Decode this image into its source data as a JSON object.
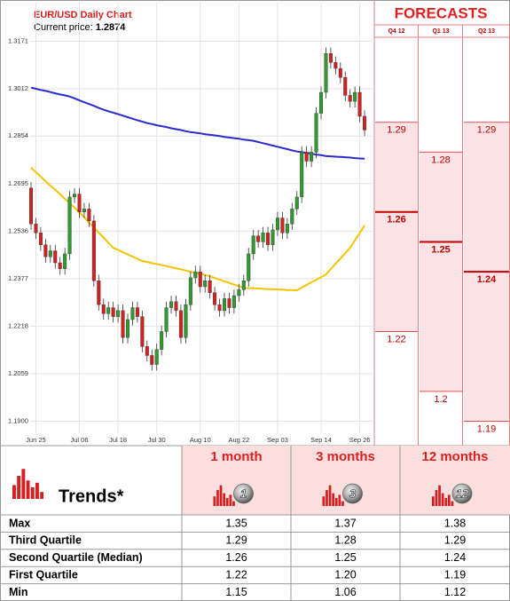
{
  "chart_data": {
    "type": "candlestick",
    "title": "EUR/USD Daily Chart",
    "current_price_label": "Current price:",
    "current_price": 1.2874,
    "categories": [
      null,
      "Jun 25",
      null,
      null,
      null,
      null,
      null,
      null,
      null,
      null,
      "Jul 06",
      null,
      null,
      null,
      null,
      null,
      null,
      null,
      "Jul 18",
      null,
      null,
      null,
      null,
      null,
      null,
      null,
      "Jul 30",
      null,
      null,
      null,
      null,
      null,
      null,
      null,
      null,
      "Aug 10",
      null,
      null,
      null,
      null,
      null,
      null,
      null,
      "Aug 22",
      null,
      null,
      null,
      null,
      null,
      null,
      null,
      "Sep 03",
      null,
      null,
      null,
      null,
      null,
      null,
      null,
      null,
      "Sep 14",
      null,
      null,
      null,
      null,
      null,
      null,
      null,
      "Sep 26",
      null
    ],
    "open": [
      1.268,
      1.256,
      1.253,
      1.249,
      1.245,
      1.247,
      1.243,
      1.241,
      1.246,
      1.265,
      1.266,
      1.26,
      1.261,
      1.257,
      1.237,
      1.229,
      1.226,
      1.228,
      1.225,
      1.227,
      1.218,
      1.224,
      1.228,
      1.225,
      1.215,
      1.212,
      1.209,
      1.214,
      1.22,
      1.228,
      1.23,
      1.227,
      1.218,
      1.229,
      1.238,
      1.24,
      1.235,
      1.237,
      1.233,
      1.229,
      1.227,
      1.231,
      1.228,
      1.232,
      1.234,
      1.237,
      1.246,
      1.252,
      1.25,
      1.253,
      1.249,
      1.254,
      1.258,
      1.253,
      1.256,
      1.261,
      1.265,
      1.28,
      1.277,
      1.28,
      1.293,
      1.3,
      1.313,
      1.31,
      1.308,
      1.305,
      1.299,
      1.297,
      1.3,
      1.292
    ],
    "high": [
      1.27,
      1.258,
      1.255,
      1.251,
      1.249,
      1.249,
      1.245,
      1.248,
      1.267,
      1.268,
      1.268,
      1.263,
      1.263,
      1.259,
      1.239,
      1.231,
      1.23,
      1.23,
      1.229,
      1.229,
      1.226,
      1.23,
      1.23,
      1.227,
      1.217,
      1.214,
      1.216,
      1.222,
      1.23,
      1.232,
      1.232,
      1.229,
      1.231,
      1.24,
      1.242,
      1.242,
      1.239,
      1.239,
      1.235,
      1.231,
      1.233,
      1.233,
      1.234,
      1.236,
      1.239,
      1.248,
      1.254,
      1.254,
      1.255,
      1.255,
      1.256,
      1.26,
      1.26,
      1.258,
      1.263,
      1.267,
      1.282,
      1.282,
      1.282,
      1.295,
      1.302,
      1.315,
      1.315,
      1.312,
      1.31,
      1.307,
      1.301,
      1.302,
      1.302,
      1.294
    ],
    "low": [
      1.254,
      1.251,
      1.247,
      1.243,
      1.243,
      1.241,
      1.239,
      1.239,
      1.244,
      1.263,
      1.258,
      1.258,
      1.255,
      1.235,
      1.227,
      1.224,
      1.224,
      1.223,
      1.223,
      1.216,
      1.216,
      1.222,
      1.223,
      1.213,
      1.21,
      1.207,
      1.207,
      1.212,
      1.218,
      1.226,
      1.225,
      1.216,
      1.216,
      1.227,
      1.236,
      1.233,
      1.233,
      1.231,
      1.227,
      1.225,
      1.225,
      1.226,
      1.226,
      1.23,
      1.232,
      1.235,
      1.244,
      1.248,
      1.248,
      1.247,
      1.247,
      1.252,
      1.251,
      1.251,
      1.254,
      1.259,
      1.263,
      1.275,
      1.275,
      1.278,
      1.291,
      1.298,
      1.308,
      1.306,
      1.303,
      1.297,
      1.295,
      1.295,
      1.29,
      1.2854
    ],
    "close": [
      1.256,
      1.253,
      1.249,
      1.245,
      1.247,
      1.243,
      1.241,
      1.246,
      1.265,
      1.266,
      1.26,
      1.261,
      1.257,
      1.237,
      1.229,
      1.226,
      1.228,
      1.225,
      1.227,
      1.218,
      1.224,
      1.228,
      1.225,
      1.215,
      1.212,
      1.209,
      1.214,
      1.22,
      1.228,
      1.23,
      1.227,
      1.218,
      1.229,
      1.238,
      1.24,
      1.235,
      1.237,
      1.233,
      1.229,
      1.227,
      1.231,
      1.228,
      1.232,
      1.234,
      1.237,
      1.246,
      1.252,
      1.25,
      1.253,
      1.249,
      1.254,
      1.258,
      1.253,
      1.256,
      1.261,
      1.265,
      1.28,
      1.277,
      1.28,
      1.293,
      1.3,
      1.313,
      1.31,
      1.308,
      1.305,
      1.299,
      1.297,
      1.3,
      1.292,
      1.2874
    ],
    "up_color": "#2e9b2e",
    "down_color": "#d42020",
    "series": [
      {
        "color": "#2a2ad0",
        "values": [
          1.3016,
          1.3012,
          1.3008,
          1.3005,
          1.3001,
          1.2997,
          1.2993,
          1.299,
          1.2986,
          1.298,
          1.2973,
          1.2967,
          1.2961,
          1.2955,
          1.2948,
          1.2942,
          1.2937,
          1.2932,
          1.2927,
          1.2922,
          1.2917,
          1.2912,
          1.2907,
          1.2902,
          1.2897,
          1.2894,
          1.289,
          1.2887,
          1.2884,
          1.288,
          1.2877,
          1.2874,
          1.287,
          1.2867,
          1.2865,
          1.2863,
          1.286,
          1.2858,
          1.2856,
          1.2854,
          1.2851,
          1.2849,
          1.2847,
          1.2845,
          1.2842,
          1.284,
          1.2838,
          1.2834,
          1.283,
          1.2826,
          1.2822,
          1.2818,
          1.2814,
          1.281,
          1.2806,
          1.2802,
          1.28,
          1.2797,
          1.2795,
          1.2792,
          1.279,
          1.2787,
          1.2786,
          1.2785,
          1.2784,
          1.2783,
          1.2782,
          1.278,
          1.2779,
          1.2778
        ]
      },
      {
        "color": "#f5c400",
        "values": [
          1.2748,
          1.2733,
          1.2718,
          1.2703,
          1.2688,
          1.2674,
          1.2659,
          1.2644,
          1.2629,
          1.2614,
          1.2599,
          1.2582,
          1.2565,
          1.2548,
          1.2531,
          1.2514,
          1.2497,
          1.248,
          1.2473,
          1.2465,
          1.2458,
          1.2451,
          1.2443,
          1.2436,
          1.2433,
          1.2429,
          1.2426,
          1.2422,
          1.2419,
          1.2415,
          1.2412,
          1.2408,
          1.2404,
          1.24,
          1.2396,
          1.2393,
          1.2389,
          1.2385,
          1.2379,
          1.2374,
          1.2368,
          1.2363,
          1.2357,
          1.2352,
          1.2346,
          1.2345,
          1.2345,
          1.2344,
          1.2343,
          1.2342,
          1.2342,
          1.2341,
          1.234,
          1.2339,
          1.2339,
          1.2338,
          1.2347,
          1.2356,
          1.2365,
          1.2373,
          1.2382,
          1.2391,
          1.2409,
          1.2427,
          1.2444,
          1.2462,
          1.248,
          1.2505,
          1.253,
          1.2555
        ]
      }
    ],
    "ylim": [
      1.186,
      1.33
    ],
    "yticks": [
      {
        "value": 1.19,
        "label": "1.1900"
      },
      1.2059,
      1.2218,
      1.2377,
      1.2536,
      1.2695,
      1.2854,
      1.3012,
      1.3171
    ],
    "grid": true
  },
  "forecasts": {
    "title": "FORECASTS",
    "columns": [
      {
        "label": "Q4 12",
        "high": 1.29,
        "median": 1.26,
        "low": 1.22
      },
      {
        "label": "Q1 13",
        "high": 1.28,
        "median": 1.25,
        "low": 1.2
      },
      {
        "label": "Q2 13",
        "high": 1.29,
        "median": 1.24,
        "low": 1.19
      }
    ]
  },
  "trends": {
    "title": "Trends*",
    "columns": [
      {
        "label": "1 month",
        "icon": "1"
      },
      {
        "label": "3 months",
        "icon": "3"
      },
      {
        "label": "12 months",
        "icon": "12"
      }
    ],
    "rows": [
      {
        "label": "Max",
        "values": [
          "1.35",
          "1.37",
          "1.38"
        ]
      },
      {
        "label": "Third Quartile",
        "values": [
          "1.29",
          "1.28",
          "1.29"
        ]
      },
      {
        "label": "Second Quartile (Median)",
        "values": [
          "1.26",
          "1.25",
          "1.24"
        ]
      },
      {
        "label": "First Quartile",
        "values": [
          "1.22",
          "1.20",
          "1.19"
        ]
      },
      {
        "label": "Min",
        "values": [
          "1.15",
          "1.06",
          "1.12"
        ]
      }
    ]
  }
}
